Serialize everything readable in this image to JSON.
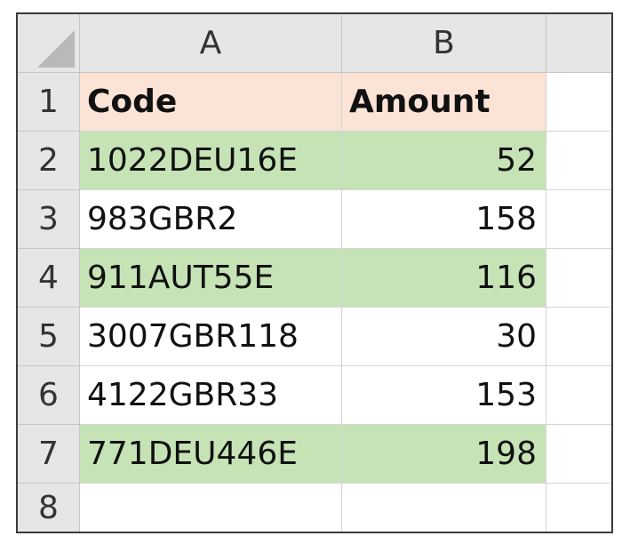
{
  "spreadsheet": {
    "columns": [
      "A",
      "B",
      ""
    ],
    "row_numbers": [
      "1",
      "2",
      "3",
      "4",
      "5",
      "6",
      "7",
      "8"
    ],
    "header_row": {
      "code": "Code",
      "amount": "Amount"
    },
    "rows": [
      {
        "code": "1022DEU16E",
        "amount": "52",
        "highlight": true
      },
      {
        "code": "983GBR2",
        "amount": "158",
        "highlight": false
      },
      {
        "code": "911AUT55E",
        "amount": "116",
        "highlight": true
      },
      {
        "code": "3007GBR118",
        "amount": "30",
        "highlight": false
      },
      {
        "code": "4122GBR33",
        "amount": "153",
        "highlight": false
      },
      {
        "code": "771DEU446E",
        "amount": "198",
        "highlight": true
      }
    ]
  },
  "colors": {
    "header_fill": "#fbe3d5",
    "highlight_fill": "#c6e3b6",
    "grid_header": "#e6e6e6"
  }
}
